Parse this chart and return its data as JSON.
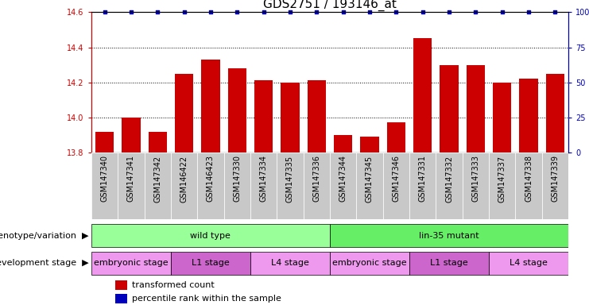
{
  "title": "GDS2751 / 193146_at",
  "samples": [
    "GSM147340",
    "GSM147341",
    "GSM147342",
    "GSM146422",
    "GSM146423",
    "GSM147330",
    "GSM147334",
    "GSM147335",
    "GSM147336",
    "GSM147344",
    "GSM147345",
    "GSM147346",
    "GSM147331",
    "GSM147332",
    "GSM147333",
    "GSM147337",
    "GSM147338",
    "GSM147339"
  ],
  "transformed_count": [
    13.92,
    14.0,
    13.92,
    14.25,
    14.33,
    14.28,
    14.21,
    14.2,
    14.21,
    13.9,
    13.89,
    13.97,
    14.45,
    14.3,
    14.3,
    14.2,
    14.22,
    14.25
  ],
  "ylim_left": [
    13.8,
    14.6
  ],
  "ylim_right": [
    0,
    100
  ],
  "yticks_left": [
    13.8,
    14.0,
    14.2,
    14.4,
    14.6
  ],
  "yticks_right": [
    0,
    25,
    50,
    75,
    100
  ],
  "bar_color": "#CC0000",
  "dot_color": "#0000BB",
  "dot_size": 8,
  "genotype_groups": [
    {
      "label": "wild type",
      "start": 0,
      "end": 9,
      "color": "#99FF99"
    },
    {
      "label": "lin-35 mutant",
      "start": 9,
      "end": 18,
      "color": "#66EE66"
    }
  ],
  "stage_groups": [
    {
      "label": "embryonic stage",
      "start": 0,
      "end": 3,
      "color": "#EE99EE"
    },
    {
      "label": "L1 stage",
      "start": 3,
      "end": 6,
      "color": "#CC66CC"
    },
    {
      "label": "L4 stage",
      "start": 6,
      "end": 9,
      "color": "#EE99EE"
    },
    {
      "label": "embryonic stage",
      "start": 9,
      "end": 12,
      "color": "#EE99EE"
    },
    {
      "label": "L1 stage",
      "start": 12,
      "end": 15,
      "color": "#CC66CC"
    },
    {
      "label": "L4 stage",
      "start": 15,
      "end": 18,
      "color": "#EE99EE"
    }
  ],
  "legend_items": [
    {
      "label": "transformed count",
      "color": "#CC0000"
    },
    {
      "label": "percentile rank within the sample",
      "color": "#0000BB"
    }
  ],
  "bar_width": 0.7,
  "title_fontsize": 11,
  "tick_fontsize": 7,
  "label_fontsize": 8,
  "annot_fontsize": 8,
  "left_tick_color": "#CC0000",
  "right_tick_color": "#0000BB",
  "sample_bg_color": "#C8C8C8"
}
